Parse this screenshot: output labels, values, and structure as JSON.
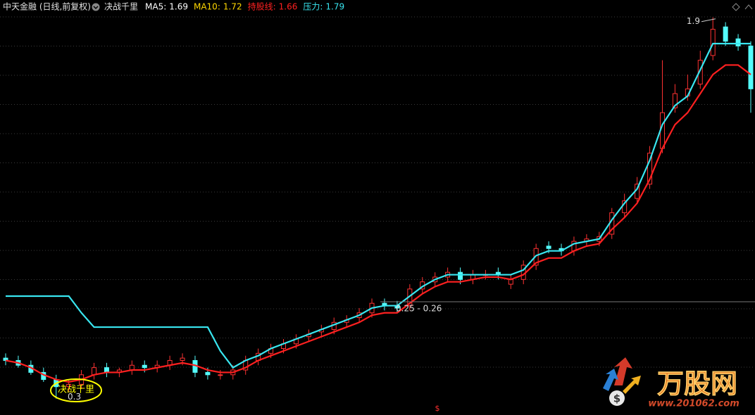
{
  "header": {
    "title": "中天金融 (日线,前复权)",
    "indicator": "决战千里"
  },
  "chart_data": {
    "type": "candlestick",
    "up_color": "#ff3232",
    "down_color": "#54fcfc",
    "ylim": [
      0.24,
      1.97
    ],
    "open": [
      0.47,
      0.46,
      0.44,
      0.41,
      0.38,
      0.35,
      0.36,
      0.4,
      0.43,
      0.41,
      0.42,
      0.44,
      0.43,
      0.44,
      0.46,
      0.46,
      0.41,
      0.4,
      0.4,
      0.42,
      0.46,
      0.49,
      0.51,
      0.53,
      0.56,
      0.58,
      0.59,
      0.62,
      0.64,
      0.66,
      0.7,
      0.69,
      0.69,
      0.76,
      0.79,
      0.81,
      0.83,
      0.8,
      0.82,
      0.83,
      0.78,
      0.8,
      0.86,
      0.94,
      0.93,
      0.92,
      0.96,
      0.96,
      0.99,
      1.08,
      1.14,
      1.2,
      1.35,
      1.52,
      1.57,
      1.62,
      1.74,
      1.86,
      1.81,
      1.78
    ],
    "high": [
      0.49,
      0.48,
      0.46,
      0.43,
      0.4,
      0.38,
      0.42,
      0.45,
      0.45,
      0.43,
      0.46,
      0.46,
      0.46,
      0.48,
      0.49,
      0.48,
      0.43,
      0.42,
      0.44,
      0.48,
      0.51,
      0.53,
      0.55,
      0.57,
      0.59,
      0.61,
      0.64,
      0.65,
      0.68,
      0.72,
      0.72,
      0.71,
      0.78,
      0.81,
      0.83,
      0.85,
      0.85,
      0.84,
      0.84,
      0.85,
      0.82,
      0.88,
      0.95,
      0.96,
      0.95,
      0.98,
      0.99,
      1.0,
      1.1,
      1.16,
      1.23,
      1.36,
      1.72,
      1.62,
      1.66,
      1.76,
      1.9,
      1.88,
      1.83,
      1.8
    ],
    "low": [
      0.44,
      0.43,
      0.4,
      0.37,
      0.3,
      0.33,
      0.34,
      0.38,
      0.39,
      0.39,
      0.4,
      0.41,
      0.41,
      0.42,
      0.44,
      0.39,
      0.38,
      0.38,
      0.38,
      0.4,
      0.44,
      0.47,
      0.49,
      0.51,
      0.54,
      0.56,
      0.57,
      0.6,
      0.62,
      0.64,
      0.67,
      0.66,
      0.67,
      0.74,
      0.77,
      0.79,
      0.78,
      0.78,
      0.8,
      0.8,
      0.76,
      0.78,
      0.84,
      0.91,
      0.9,
      0.9,
      0.94,
      0.94,
      0.97,
      1.06,
      1.12,
      1.18,
      1.33,
      1.5,
      1.55,
      1.6,
      1.72,
      1.78,
      1.76,
      1.5
    ],
    "close": [
      0.46,
      0.44,
      0.41,
      0.38,
      0.35,
      0.36,
      0.4,
      0.43,
      0.41,
      0.42,
      0.44,
      0.43,
      0.44,
      0.46,
      0.47,
      0.41,
      0.4,
      0.4,
      0.42,
      0.46,
      0.49,
      0.51,
      0.53,
      0.55,
      0.57,
      0.59,
      0.62,
      0.63,
      0.66,
      0.7,
      0.69,
      0.68,
      0.76,
      0.79,
      0.81,
      0.83,
      0.8,
      0.82,
      0.82,
      0.82,
      0.8,
      0.86,
      0.93,
      0.93,
      0.92,
      0.96,
      0.97,
      0.98,
      1.08,
      1.13,
      1.2,
      1.33,
      1.5,
      1.58,
      1.6,
      1.72,
      1.85,
      1.8,
      1.78,
      1.6
    ],
    "series": [
      {
        "name": "MA5:",
        "color": "#ffffff",
        "value": 1.69
      },
      {
        "name": "MA10:",
        "color": "#ffd700",
        "value": 1.72
      },
      {
        "name": "持股线:",
        "color": "#ff2020",
        "value": 1.66,
        "values": [
          0.46,
          0.45,
          0.43,
          0.4,
          0.38,
          0.37,
          0.38,
          0.4,
          0.41,
          0.41,
          0.42,
          0.42,
          0.43,
          0.44,
          0.45,
          0.44,
          0.42,
          0.41,
          0.41,
          0.43,
          0.46,
          0.48,
          0.5,
          0.52,
          0.54,
          0.56,
          0.58,
          0.6,
          0.62,
          0.65,
          0.66,
          0.66,
          0.7,
          0.74,
          0.77,
          0.79,
          0.79,
          0.8,
          0.81,
          0.81,
          0.8,
          0.82,
          0.87,
          0.89,
          0.89,
          0.92,
          0.94,
          0.95,
          1.01,
          1.06,
          1.12,
          1.22,
          1.35,
          1.45,
          1.5,
          1.58,
          1.66,
          1.7,
          1.7,
          1.66
        ]
      },
      {
        "name": "压力:",
        "color": "#39e6f0",
        "value": 1.79,
        "values": [
          0.73,
          0.73,
          0.73,
          0.73,
          0.73,
          0.73,
          0.66,
          0.6,
          0.6,
          0.6,
          0.6,
          0.6,
          0.6,
          0.6,
          0.6,
          0.6,
          0.6,
          0.5,
          0.43,
          0.46,
          0.48,
          0.51,
          0.53,
          0.55,
          0.57,
          0.59,
          0.61,
          0.63,
          0.65,
          0.68,
          0.69,
          0.69,
          0.73,
          0.77,
          0.8,
          0.82,
          0.82,
          0.82,
          0.82,
          0.82,
          0.82,
          0.84,
          0.9,
          0.92,
          0.92,
          0.95,
          0.96,
          0.97,
          1.05,
          1.12,
          1.18,
          1.3,
          1.45,
          1.53,
          1.57,
          1.68,
          1.79,
          1.79,
          1.79,
          1.79
        ]
      }
    ],
    "annotations": {
      "high_label": 1.9,
      "low_label": 0.3,
      "range_label": "0.25 - 0.26",
      "signal_label": "决战千里",
      "marker": "$"
    }
  },
  "watermark": {
    "brand": "万股网",
    "url": "www.201062.com"
  }
}
